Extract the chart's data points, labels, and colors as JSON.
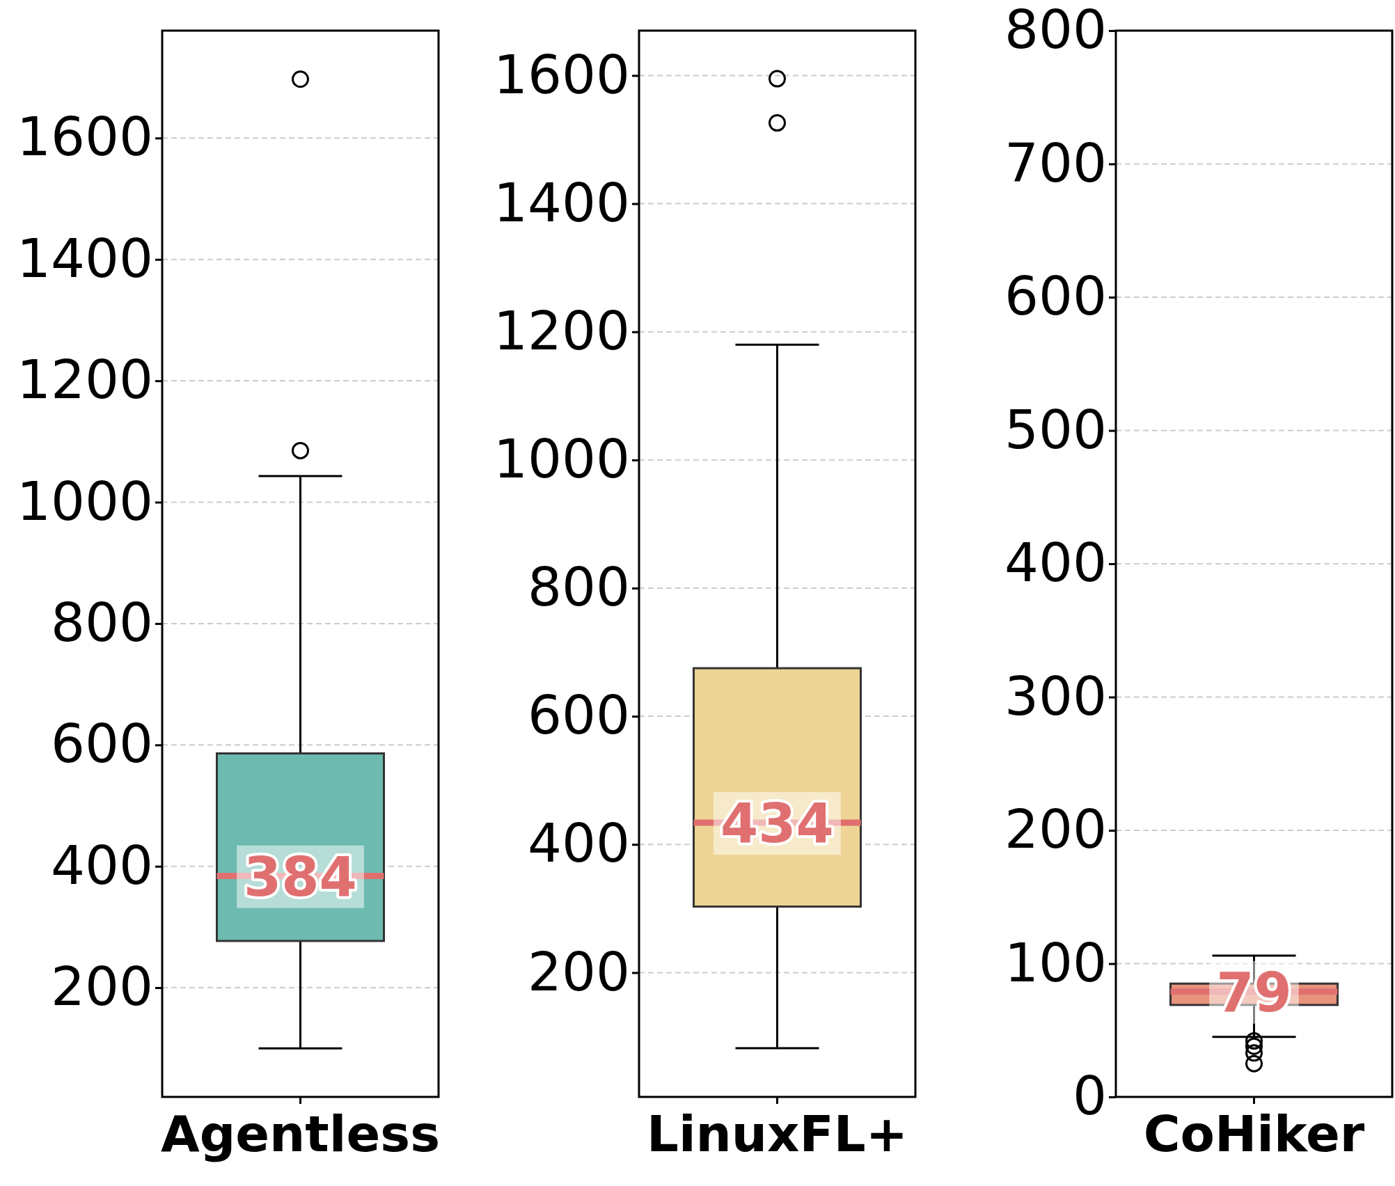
{
  "chart_data": [
    {
      "type": "box",
      "categories": [
        "Agentless"
      ],
      "color": "#6dbbb0",
      "annotations": [
        {
          "text": "384",
          "x": "Agentless",
          "y": 384
        }
      ],
      "grid": "y",
      "ylim": [
        20,
        1777
      ],
      "yticks": [
        200,
        400,
        600,
        800,
        1000,
        1200,
        1400,
        1600
      ],
      "boxes": [
        {
          "low": 100,
          "q1": 277,
          "median": 384,
          "q3": 586,
          "high": 1043,
          "outliers": [
            1085,
            1697
          ]
        }
      ]
    },
    {
      "type": "box",
      "categories": [
        "LinuxFL+"
      ],
      "color": "#eed595",
      "annotations": [
        {
          "text": "434",
          "x": "LinuxFL+",
          "y": 434
        }
      ],
      "grid": "y",
      "ylim": [
        6,
        1670
      ],
      "yticks": [
        200,
        400,
        600,
        800,
        1000,
        1200,
        1400,
        1600
      ],
      "boxes": [
        {
          "low": 82,
          "q1": 303,
          "median": 434,
          "q3": 675,
          "high": 1180,
          "outliers": [
            1526,
            1595
          ]
        }
      ]
    },
    {
      "type": "box",
      "categories": [
        "CoHiker"
      ],
      "color": "#e8937c",
      "annotations": [
        {
          "text": "79",
          "x": "CoHiker",
          "y": 79
        }
      ],
      "grid": "y",
      "ylim": [
        0,
        800
      ],
      "yticks": [
        0,
        100,
        200,
        300,
        400,
        500,
        600,
        700,
        800
      ],
      "boxes": [
        {
          "low": 45,
          "q1": 69,
          "median": 79,
          "q3": 85,
          "high": 106,
          "outliers": [
            25,
            33,
            38,
            42
          ]
        }
      ]
    }
  ]
}
